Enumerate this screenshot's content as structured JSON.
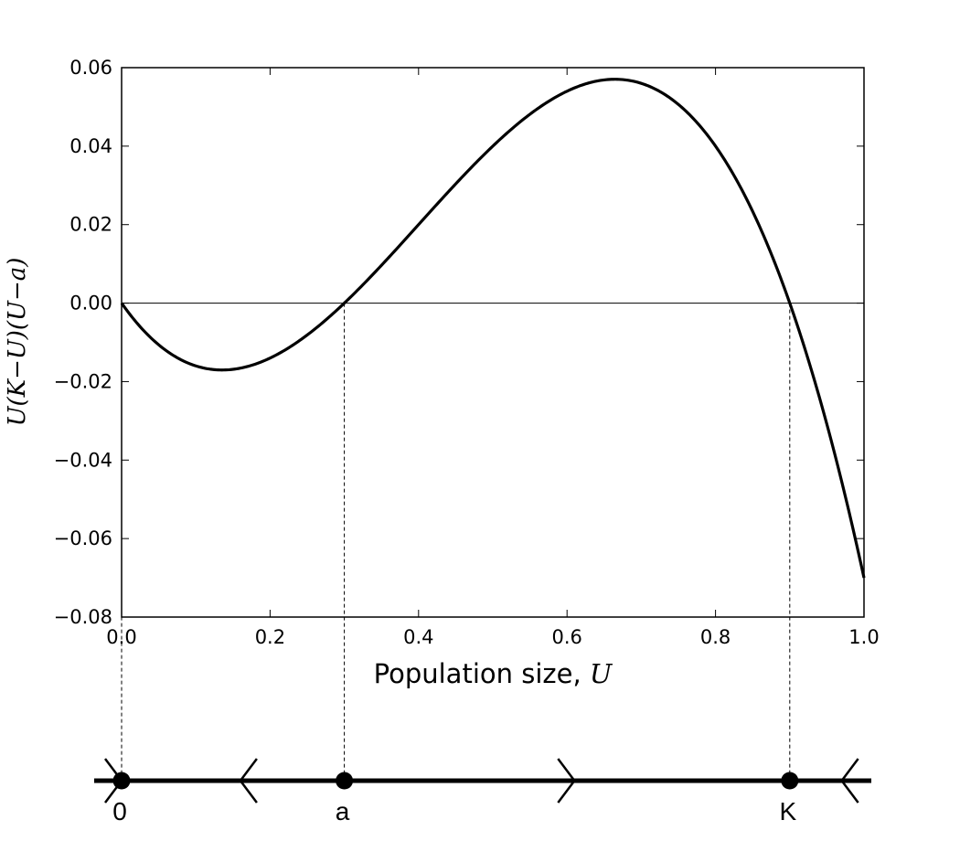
{
  "chart_data": {
    "type": "line",
    "function": "U(K-U)(U-a)",
    "params": {
      "K": 0.9,
      "a": 0.3
    },
    "x": [
      0.0,
      0.05,
      0.1,
      0.15,
      0.2,
      0.25,
      0.3,
      0.35,
      0.4,
      0.45,
      0.5,
      0.55,
      0.6,
      0.65,
      0.7,
      0.75,
      0.8,
      0.85,
      0.9,
      0.95,
      1.0
    ],
    "y": [
      0.0,
      -0.01063,
      -0.016,
      -0.01688,
      -0.014,
      -0.00813,
      0.0,
      0.00963,
      0.02,
      0.03038,
      0.04,
      0.04813,
      0.054,
      0.05688,
      0.056,
      0.05063,
      0.04,
      0.02338,
      0.0,
      -0.03088,
      -0.07
    ],
    "xlabel": "Population size, ",
    "xlabel_var": "U",
    "ylabel": "U(K−U)(U−a)",
    "xlim": [
      0.0,
      1.0
    ],
    "ylim": [
      -0.08,
      0.06
    ],
    "xticks": [
      "0.0",
      "0.2",
      "0.4",
      "0.6",
      "0.8",
      "1.0"
    ],
    "xtick_values": [
      0.0,
      0.2,
      0.4,
      0.6,
      0.8,
      1.0
    ],
    "yticks": [
      "0.06",
      "0.04",
      "0.02",
      "0.00",
      "−0.02",
      "−0.04",
      "−0.06",
      "−0.08"
    ],
    "ytick_values": [
      0.06,
      0.04,
      0.02,
      0.0,
      -0.02,
      -0.04,
      -0.06,
      -0.08
    ],
    "zero_line": true,
    "grid": false,
    "guide_lines_at": [
      0.0,
      0.3,
      0.9
    ],
    "phase_line": {
      "points": [
        {
          "value": 0.0,
          "label": "0"
        },
        {
          "value": 0.3,
          "label": "a"
        },
        {
          "value": 0.9,
          "label": "K"
        }
      ],
      "arrows": [
        {
          "position": 0.0,
          "direction": "right"
        },
        {
          "position": 0.16,
          "direction": "left"
        },
        {
          "position": 0.61,
          "direction": "right"
        },
        {
          "position": 0.97,
          "direction": "left"
        }
      ]
    },
    "colors": {
      "curve": "#000000",
      "axes": "#000000",
      "background": "#ffffff"
    }
  }
}
